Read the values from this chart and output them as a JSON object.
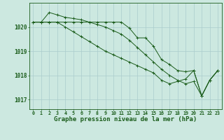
{
  "background_color": "#cce8e0",
  "grid_color": "#aacccc",
  "line_color": "#1a5c1a",
  "marker_color": "#1a5c1a",
  "title": "Graphe pression niveau de la mer (hPa)",
  "title_fontsize": 6.5,
  "xlim": [
    -0.5,
    23.5
  ],
  "ylim": [
    1016.6,
    1021.0
  ],
  "yticks": [
    1017,
    1018,
    1019,
    1020
  ],
  "xticks": [
    0,
    1,
    2,
    3,
    4,
    5,
    6,
    7,
    8,
    9,
    10,
    11,
    12,
    13,
    14,
    15,
    16,
    17,
    18,
    19,
    20,
    21,
    22,
    23
  ],
  "series": [
    {
      "x": [
        0,
        1,
        2,
        3,
        4,
        5,
        6,
        7,
        8,
        9,
        10,
        11,
        12,
        13,
        14,
        15,
        16,
        17,
        18,
        19,
        20,
        21,
        22,
        23
      ],
      "y": [
        1020.2,
        1020.2,
        1020.2,
        1020.2,
        1020.2,
        1020.2,
        1020.2,
        1020.2,
        1020.2,
        1020.2,
        1020.2,
        1020.2,
        1019.95,
        1019.55,
        1019.55,
        1019.2,
        1018.65,
        1018.45,
        1018.2,
        1018.15,
        1018.2,
        1017.15,
        1017.8,
        1018.2
      ]
    },
    {
      "x": [
        0,
        1,
        2,
        3,
        4,
        5,
        6,
        7,
        8,
        9,
        10,
        11,
        12,
        13,
        14,
        15,
        16,
        17,
        18,
        19,
        20,
        21,
        22,
        23
      ],
      "y": [
        1020.2,
        1020.2,
        1020.6,
        1020.5,
        1020.4,
        1020.35,
        1020.3,
        1020.2,
        1020.1,
        1020.0,
        1019.85,
        1019.7,
        1019.45,
        1019.15,
        1018.85,
        1018.55,
        1018.25,
        1018.0,
        1017.8,
        1017.65,
        1017.75,
        1017.15,
        1017.8,
        1018.2
      ]
    },
    {
      "x": [
        0,
        1,
        2,
        3,
        4,
        5,
        6,
        7,
        8,
        9,
        10,
        11,
        12,
        13,
        14,
        15,
        16,
        17,
        18,
        19,
        20,
        21,
        22,
        23
      ],
      "y": [
        1020.2,
        1020.2,
        1020.2,
        1020.2,
        1020.0,
        1019.8,
        1019.6,
        1019.4,
        1019.2,
        1019.0,
        1018.85,
        1018.7,
        1018.55,
        1018.4,
        1018.25,
        1018.1,
        1017.8,
        1017.65,
        1017.75,
        1017.85,
        1018.2,
        1017.15,
        1017.8,
        1018.2
      ]
    }
  ]
}
